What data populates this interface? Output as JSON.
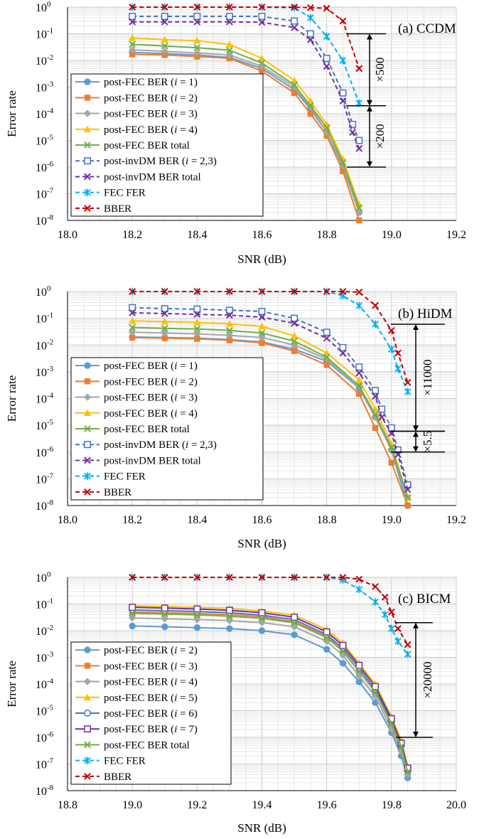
{
  "figure": {
    "panels": [
      "(a) CCDM",
      "(b) HiDM",
      "(c) BICM"
    ]
  },
  "colors": {
    "blue": "#5B9BD5",
    "orange": "#ED7D31",
    "gray": "#A5A5A5",
    "yellow": "#FFC000",
    "darkblue": "#4472C4",
    "purple": "#7030A0",
    "green": "#70AD47",
    "cyan": "#00B0F0",
    "red": "#C00000"
  },
  "chart_data": [
    {
      "type": "line",
      "panel": "(a) CCDM",
      "xlabel": "SNR (dB)",
      "ylabel": "Error rate",
      "xlim": [
        18.0,
        19.2
      ],
      "xticks": [
        "18.0",
        "18.2",
        "18.4",
        "18.6",
        "18.8",
        "19.0",
        "19.2"
      ],
      "ylim_exp": [
        -8,
        0
      ],
      "yscale": "log",
      "grid": true,
      "legend_position": "left",
      "annotations": [
        "×500",
        "×200"
      ],
      "series": [
        {
          "name": "post-FEC BER (i = 1)",
          "color": "blue",
          "marker": "circle",
          "dash": false,
          "x": [
            18.2,
            18.3,
            18.4,
            18.5,
            18.6,
            18.7,
            18.75,
            18.8,
            18.85,
            18.9
          ],
          "y": [
            0.02,
            0.018,
            0.016,
            0.013,
            0.005,
            0.0008,
            0.00015,
            2e-05,
            1e-06,
            2e-08
          ]
        },
        {
          "name": "post-FEC BER (i = 2)",
          "color": "orange",
          "marker": "square",
          "dash": false,
          "x": [
            18.2,
            18.3,
            18.4,
            18.5,
            18.6,
            18.7,
            18.75,
            18.8,
            18.85,
            18.9
          ],
          "y": [
            0.017,
            0.016,
            0.014,
            0.012,
            0.004,
            0.0006,
            0.0001,
            1.5e-05,
            7e-07,
            1e-08
          ]
        },
        {
          "name": "post-FEC BER (i = 3)",
          "color": "gray",
          "marker": "diamond",
          "dash": false,
          "x": [
            18.2,
            18.3,
            18.4,
            18.5,
            18.6,
            18.7,
            18.75,
            18.8,
            18.85,
            18.9
          ],
          "y": [
            0.025,
            0.022,
            0.019,
            0.016,
            0.006,
            0.001,
            0.00018,
            2e-05,
            1.2e-06,
            2e-08
          ]
        },
        {
          "name": "post-FEC BER (i = 4)",
          "color": "yellow",
          "marker": "triangle",
          "dash": false,
          "x": [
            18.2,
            18.3,
            18.4,
            18.5,
            18.6,
            18.7,
            18.75,
            18.8,
            18.85,
            18.9
          ],
          "y": [
            0.07,
            0.06,
            0.055,
            0.04,
            0.012,
            0.0018,
            0.0003,
            4e-05,
            2e-06,
            4e-08
          ]
        },
        {
          "name": "post-FEC BER total",
          "color": "green",
          "marker": "x",
          "dash": false,
          "x": [
            18.2,
            18.3,
            18.4,
            18.5,
            18.6,
            18.7,
            18.75,
            18.8,
            18.85,
            18.9
          ],
          "y": [
            0.04,
            0.035,
            0.03,
            0.024,
            0.008,
            0.0012,
            0.0002,
            3e-05,
            1.5e-06,
            3e-08
          ]
        },
        {
          "name": "post-invDM BER (i = 2,3)",
          "color": "darkblue",
          "marker": "opensquare",
          "dash": true,
          "x": [
            18.2,
            18.3,
            18.4,
            18.5,
            18.6,
            18.7,
            18.75,
            18.8,
            18.85,
            18.88,
            18.9
          ],
          "y": [
            0.45,
            0.45,
            0.45,
            0.45,
            0.45,
            0.3,
            0.1,
            0.012,
            0.0006,
            4e-05,
            1e-05
          ]
        },
        {
          "name": "post-invDM BER total",
          "color": "purple",
          "marker": "x",
          "dash": true,
          "x": [
            18.2,
            18.3,
            18.4,
            18.5,
            18.6,
            18.7,
            18.75,
            18.8,
            18.85,
            18.88,
            18.9
          ],
          "y": [
            0.28,
            0.28,
            0.28,
            0.28,
            0.27,
            0.17,
            0.06,
            0.006,
            0.0003,
            2e-05,
            5e-06
          ]
        },
        {
          "name": "FEC FER",
          "color": "cyan",
          "marker": "star",
          "dash": true,
          "x": [
            18.2,
            18.3,
            18.4,
            18.5,
            18.6,
            18.7,
            18.75,
            18.8,
            18.85,
            18.9
          ],
          "y": [
            1,
            1,
            1,
            1,
            1,
            0.95,
            0.4,
            0.08,
            0.01,
            0.00025
          ]
        },
        {
          "name": "BBER",
          "color": "red",
          "marker": "x",
          "dash": true,
          "x": [
            18.2,
            18.3,
            18.4,
            18.5,
            18.6,
            18.7,
            18.75,
            18.8,
            18.85,
            18.9
          ],
          "y": [
            1,
            1,
            1,
            1,
            1,
            1,
            0.95,
            0.9,
            0.3,
            0.005
          ]
        }
      ]
    },
    {
      "type": "line",
      "panel": "(b) HiDM",
      "xlabel": "SNR (dB)",
      "ylabel": "Error rate",
      "xlim": [
        18.0,
        19.2
      ],
      "xticks": [
        "18.0",
        "18.2",
        "18.4",
        "18.6",
        "18.8",
        "19.0",
        "19.2"
      ],
      "ylim_exp": [
        -8,
        0
      ],
      "yscale": "log",
      "grid": true,
      "legend_position": "left",
      "annotations": [
        "×11000",
        "×5.5"
      ],
      "series": [
        {
          "name": "post-FEC BER (i = 1)",
          "color": "blue",
          "marker": "circle",
          "dash": false,
          "x": [
            18.2,
            18.3,
            18.4,
            18.5,
            18.6,
            18.7,
            18.8,
            18.9,
            18.95,
            19.0,
            19.05
          ],
          "y": [
            0.02,
            0.019,
            0.018,
            0.016,
            0.013,
            0.007,
            0.0025,
            0.00025,
            2e-05,
            1.2e-06,
            1e-08
          ]
        },
        {
          "name": "post-FEC BER (i = 2)",
          "color": "orange",
          "marker": "square",
          "dash": false,
          "x": [
            18.2,
            18.3,
            18.4,
            18.5,
            18.6,
            18.7,
            18.8,
            18.9,
            18.95,
            19.0,
            19.05
          ],
          "y": [
            0.019,
            0.018,
            0.017,
            0.015,
            0.012,
            0.006,
            0.0018,
            0.00015,
            8e-06,
            4e-07,
            1e-08
          ]
        },
        {
          "name": "post-FEC BER (i = 3)",
          "color": "gray",
          "marker": "diamond",
          "dash": false,
          "x": [
            18.2,
            18.3,
            18.4,
            18.5,
            18.6,
            18.7,
            18.8,
            18.9,
            18.95,
            19.0,
            19.05
          ],
          "y": [
            0.03,
            0.028,
            0.026,
            0.023,
            0.019,
            0.01,
            0.003,
            0.0003,
            2e-05,
            1.2e-06,
            2e-08
          ]
        },
        {
          "name": "post-FEC BER (i = 4)",
          "color": "yellow",
          "marker": "triangle",
          "dash": false,
          "x": [
            18.2,
            18.3,
            18.4,
            18.5,
            18.6,
            18.7,
            18.8,
            18.9,
            18.95,
            19.0,
            19.05
          ],
          "y": [
            0.08,
            0.075,
            0.07,
            0.062,
            0.05,
            0.022,
            0.005,
            0.0005,
            4e-05,
            2e-06,
            2e-08
          ]
        },
        {
          "name": "post-FEC BER total",
          "color": "green",
          "marker": "x",
          "dash": false,
          "x": [
            18.2,
            18.3,
            18.4,
            18.5,
            18.6,
            18.7,
            18.8,
            18.9,
            18.95,
            19.0,
            19.05
          ],
          "y": [
            0.045,
            0.042,
            0.04,
            0.035,
            0.028,
            0.014,
            0.0035,
            0.0003,
            2.5e-05,
            1.5e-06,
            2e-08
          ]
        },
        {
          "name": "post-invDM BER (i = 2,3)",
          "color": "darkblue",
          "marker": "opensquare",
          "dash": true,
          "x": [
            18.2,
            18.3,
            18.4,
            18.5,
            18.6,
            18.7,
            18.8,
            18.85,
            18.9,
            18.95,
            18.97,
            19.0,
            19.02,
            19.05
          ],
          "y": [
            0.25,
            0.23,
            0.22,
            0.2,
            0.18,
            0.1,
            0.03,
            0.008,
            0.0015,
            0.0002,
            4e-05,
            8e-06,
            1.2e-06,
            6e-08
          ]
        },
        {
          "name": "post-invDM BER total",
          "color": "purple",
          "marker": "x",
          "dash": true,
          "x": [
            18.2,
            18.3,
            18.4,
            18.5,
            18.6,
            18.7,
            18.8,
            18.85,
            18.9,
            18.95,
            18.97,
            19.0,
            19.02,
            19.05
          ],
          "y": [
            0.16,
            0.15,
            0.14,
            0.13,
            0.11,
            0.065,
            0.018,
            0.005,
            0.0009,
            0.00012,
            2e-05,
            5e-06,
            8e-07,
            4e-08
          ]
        },
        {
          "name": "FEC FER",
          "color": "cyan",
          "marker": "star",
          "dash": true,
          "x": [
            18.2,
            18.3,
            18.4,
            18.5,
            18.6,
            18.7,
            18.8,
            18.85,
            18.9,
            18.95,
            19.0,
            19.02,
            19.05
          ],
          "y": [
            1,
            1,
            1,
            1,
            1,
            1,
            1,
            0.7,
            0.3,
            0.06,
            0.007,
            0.0013,
            0.00018
          ]
        },
        {
          "name": "BBER",
          "color": "red",
          "marker": "x",
          "dash": true,
          "x": [
            18.2,
            18.3,
            18.4,
            18.5,
            18.6,
            18.7,
            18.8,
            18.85,
            18.9,
            18.95,
            19.0,
            19.02,
            19.05
          ],
          "y": [
            1,
            1,
            1,
            1,
            1,
            1,
            1,
            1,
            0.95,
            0.3,
            0.035,
            0.005,
            0.0004
          ]
        }
      ]
    },
    {
      "type": "line",
      "panel": "(c) BICM",
      "xlabel": "SNR (dB)",
      "ylabel": "Error rate",
      "xlim": [
        18.8,
        20.0
      ],
      "xticks": [
        "18.8",
        "19.0",
        "19.2",
        "19.4",
        "19.6",
        "19.8",
        "20.0"
      ],
      "ylim_exp": [
        -8,
        0
      ],
      "yscale": "log",
      "grid": true,
      "legend_position": "left",
      "annotations": [
        "×20000"
      ],
      "series": [
        {
          "name": "post-FEC BER (i = 2)",
          "color": "blue",
          "marker": "circle",
          "dash": false,
          "x": [
            19.0,
            19.1,
            19.2,
            19.3,
            19.4,
            19.5,
            19.6,
            19.65,
            19.7,
            19.75,
            19.8,
            19.83,
            19.85
          ],
          "y": [
            0.015,
            0.014,
            0.013,
            0.012,
            0.01,
            0.007,
            0.002,
            0.0006,
            0.00012,
            2e-05,
            1.5e-06,
            2e-07,
            3e-08
          ]
        },
        {
          "name": "post-FEC BER (i = 3)",
          "color": "orange",
          "marker": "square",
          "dash": false,
          "x": [
            19.0,
            19.1,
            19.2,
            19.3,
            19.4,
            19.5,
            19.6,
            19.65,
            19.7,
            19.75,
            19.8,
            19.83,
            19.85
          ],
          "y": [
            0.05,
            0.047,
            0.044,
            0.04,
            0.033,
            0.022,
            0.006,
            0.0018,
            0.0003,
            5e-05,
            3e-06,
            4e-07,
            5e-08
          ]
        },
        {
          "name": "post-FEC BER (i = 4)",
          "color": "gray",
          "marker": "diamond",
          "dash": false,
          "x": [
            19.0,
            19.1,
            19.2,
            19.3,
            19.4,
            19.5,
            19.6,
            19.65,
            19.7,
            19.75,
            19.8,
            19.83,
            19.85
          ],
          "y": [
            0.03,
            0.028,
            0.026,
            0.024,
            0.02,
            0.014,
            0.004,
            0.0012,
            0.0002,
            3.5e-05,
            2e-06,
            3e-07,
            4e-08
          ]
        },
        {
          "name": "post-FEC BER (i = 5)",
          "color": "yellow",
          "marker": "triangle",
          "dash": false,
          "x": [
            19.0,
            19.1,
            19.2,
            19.3,
            19.4,
            19.5,
            19.6,
            19.65,
            19.7,
            19.75,
            19.8,
            19.83,
            19.85
          ],
          "y": [
            0.085,
            0.08,
            0.075,
            0.068,
            0.055,
            0.038,
            0.011,
            0.0035,
            0.0006,
            0.0001,
            6e-06,
            8e-07,
            8e-08
          ]
        },
        {
          "name": "post-FEC BER (i = 6)",
          "color": "darkblue",
          "marker": "opencircle",
          "dash": false,
          "x": [
            19.0,
            19.1,
            19.2,
            19.3,
            19.4,
            19.5,
            19.6,
            19.65,
            19.7,
            19.75,
            19.8,
            19.83,
            19.85
          ],
          "y": [
            0.06,
            0.056,
            0.052,
            0.047,
            0.038,
            0.026,
            0.007,
            0.0022,
            0.0004,
            6e-05,
            4e-06,
            5e-07,
            6e-08
          ]
        },
        {
          "name": "post-FEC BER (i = 7)",
          "color": "purple",
          "marker": "opensquare",
          "dash": false,
          "x": [
            19.0,
            19.1,
            19.2,
            19.3,
            19.4,
            19.5,
            19.6,
            19.65,
            19.7,
            19.75,
            19.8,
            19.83,
            19.85
          ],
          "y": [
            0.075,
            0.07,
            0.065,
            0.058,
            0.047,
            0.032,
            0.009,
            0.0028,
            0.0005,
            8e-05,
            5e-06,
            6e-07,
            7e-08
          ]
        },
        {
          "name": "post-FEC BER total",
          "color": "green",
          "marker": "x",
          "dash": false,
          "x": [
            19.0,
            19.1,
            19.2,
            19.3,
            19.4,
            19.5,
            19.6,
            19.65,
            19.7,
            19.75,
            19.8,
            19.83,
            19.85
          ],
          "y": [
            0.045,
            0.042,
            0.039,
            0.035,
            0.029,
            0.02,
            0.0055,
            0.0017,
            0.0003,
            5e-05,
            3.3e-06,
            4.5e-07,
            5e-08
          ]
        },
        {
          "name": "FEC FER",
          "color": "cyan",
          "marker": "star",
          "dash": true,
          "x": [
            19.0,
            19.1,
            19.2,
            19.3,
            19.4,
            19.5,
            19.6,
            19.65,
            19.7,
            19.75,
            19.78,
            19.8,
            19.82,
            19.85
          ],
          "y": [
            1,
            1,
            1,
            1,
            1,
            1,
            1,
            0.8,
            0.35,
            0.12,
            0.04,
            0.012,
            0.004,
            0.0013
          ]
        },
        {
          "name": "BBER",
          "color": "red",
          "marker": "x",
          "dash": true,
          "x": [
            19.0,
            19.1,
            19.2,
            19.3,
            19.4,
            19.5,
            19.6,
            19.65,
            19.7,
            19.75,
            19.78,
            19.8,
            19.82,
            19.85
          ],
          "y": [
            1,
            1,
            1,
            1,
            1,
            1,
            1,
            1,
            0.85,
            0.45,
            0.18,
            0.05,
            0.012,
            0.003
          ]
        }
      ]
    }
  ]
}
